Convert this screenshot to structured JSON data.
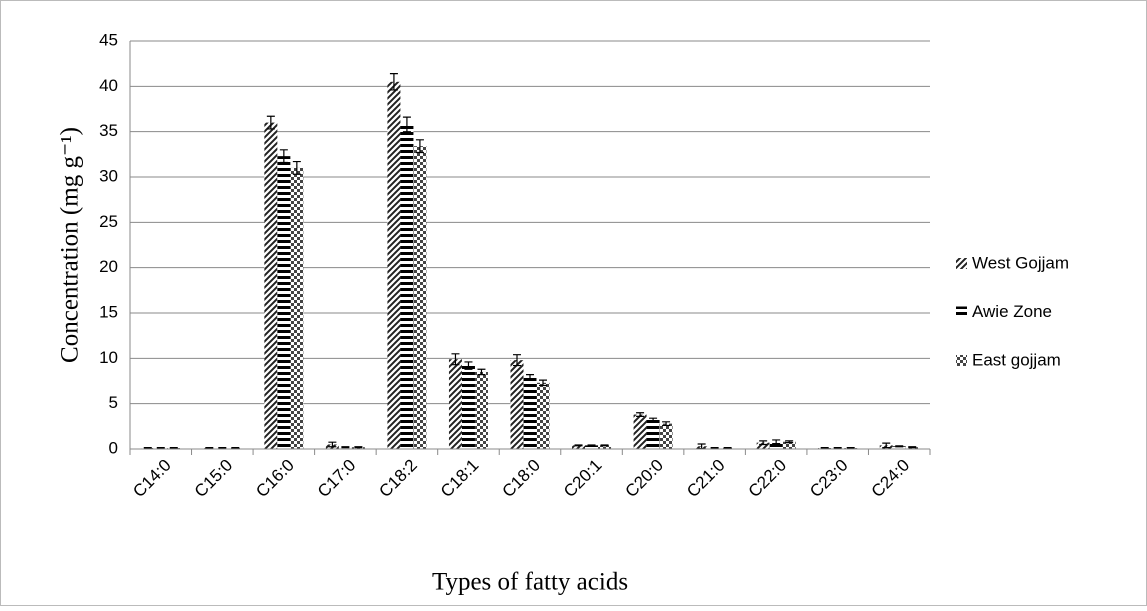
{
  "chart_data": {
    "type": "bar",
    "y_label": "Concentration (mg g⁻¹)",
    "x_label": "Types of fatty acids",
    "categories": [
      "C14:0",
      "C15:0",
      "C16:0",
      "C17:0",
      "C18:2",
      "C18:1",
      "C18:0",
      "C20:1",
      "C20:0",
      "C21:0",
      "C22:0",
      "C23:0",
      "C24:0"
    ],
    "series": [
      {
        "name": "West Gojjam",
        "color": "#222222",
        "values": [
          0.1,
          0.1,
          36.0,
          0.5,
          40.5,
          9.9,
          9.8,
          0.4,
          3.8,
          0.3,
          0.7,
          0.1,
          0.4
        ],
        "errors": [
          0.05,
          0.05,
          0.7,
          0.25,
          0.9,
          0.6,
          0.6,
          0.05,
          0.2,
          0.25,
          0.2,
          0.05,
          0.25
        ]
      },
      {
        "name": "Awie Zone",
        "color": "#000000",
        "values": [
          0.1,
          0.1,
          32.3,
          0.2,
          35.8,
          9.2,
          7.9,
          0.4,
          3.2,
          0.1,
          0.8,
          0.1,
          0.3
        ],
        "errors": [
          0.05,
          0.05,
          0.7,
          0.05,
          0.8,
          0.4,
          0.3,
          0.05,
          0.2,
          0.05,
          0.2,
          0.05,
          0.05
        ]
      },
      {
        "name": "East gojjam",
        "color": "#444444",
        "values": [
          0.1,
          0.1,
          31.0,
          0.2,
          33.4,
          8.5,
          7.3,
          0.4,
          2.8,
          0.1,
          0.8,
          0.1,
          0.2
        ],
        "errors": [
          0.05,
          0.05,
          0.7,
          0.05,
          0.7,
          0.3,
          0.3,
          0.05,
          0.2,
          0.05,
          0.1,
          0.05,
          0.05
        ]
      }
    ],
    "ylim": [
      0,
      45
    ],
    "yticks": [
      0,
      5,
      10,
      15,
      20,
      25,
      30,
      35,
      40,
      45
    ],
    "grid": true,
    "legend": "right"
  }
}
